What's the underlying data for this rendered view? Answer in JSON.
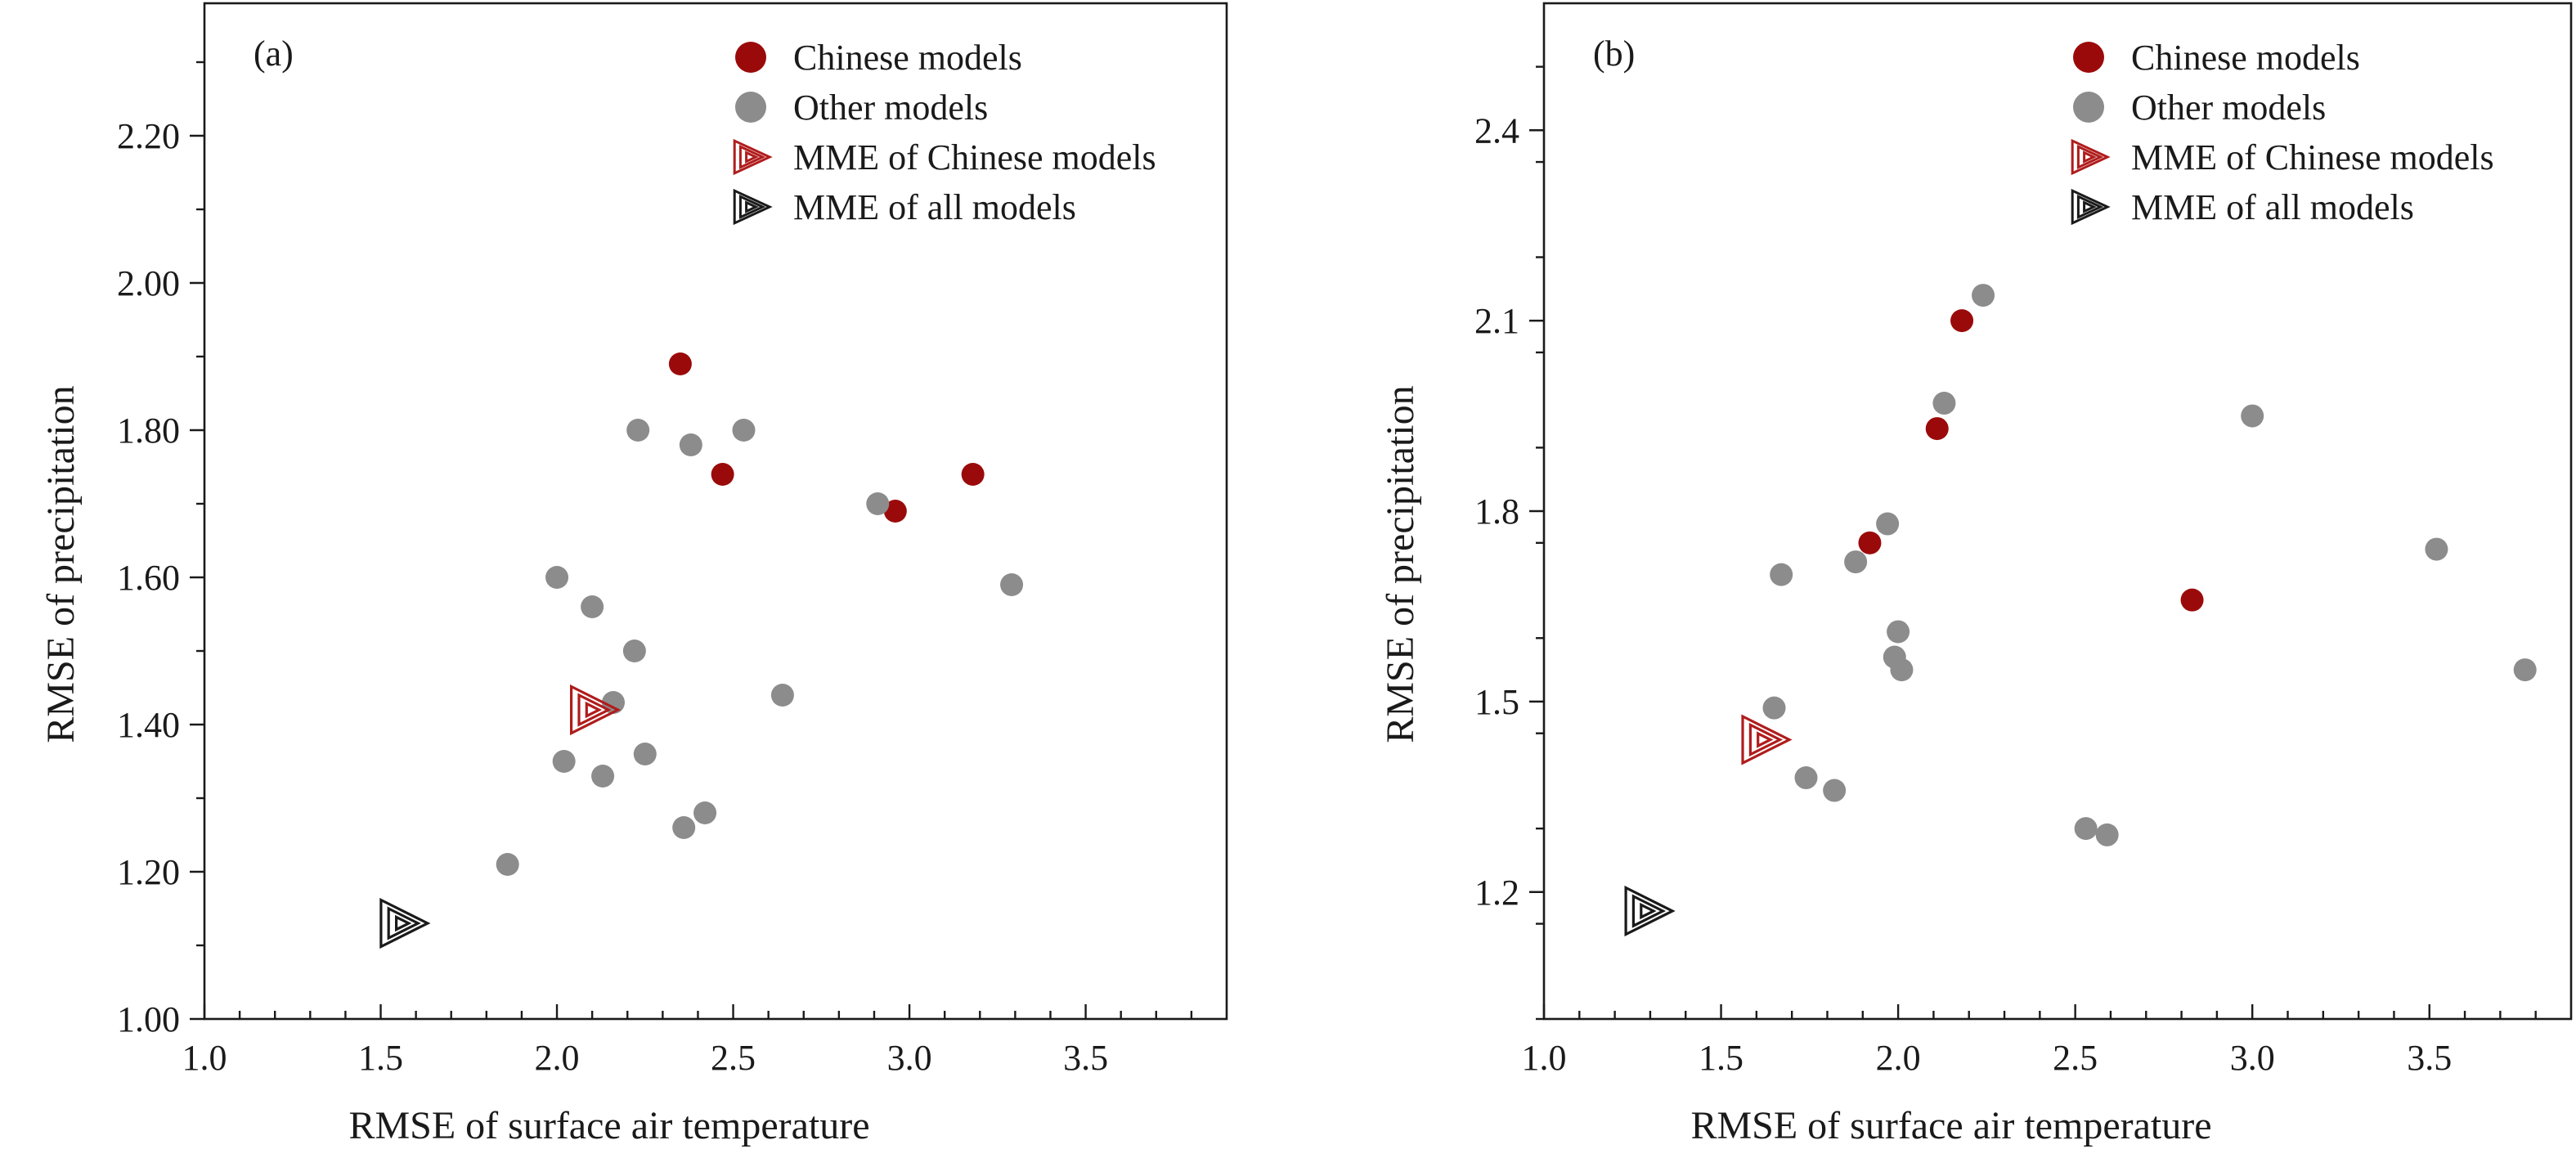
{
  "figure": {
    "legend": {
      "chinese": "Chinese models",
      "other": "Other models",
      "mme_chinese": "MME of Chinese models",
      "mme_all": "MME of all models"
    },
    "colors": {
      "chinese": "#9b0a0a",
      "other": "#8c8c8c",
      "mme_chinese": "#b01c1c",
      "mme_all": "#1a1a1a"
    }
  },
  "chart_data": [
    {
      "type": "scatter",
      "panel_label": "(a)",
      "xlabel": "RMSE of surface air temperature",
      "ylabel": "RMSE of precipitation",
      "xlim": [
        1.0,
        3.9
      ],
      "ylim": [
        1.0,
        2.38
      ],
      "xticks": [
        1.0,
        1.5,
        2.0,
        2.5,
        3.0,
        3.5
      ],
      "xtick_labels": [
        "1.0",
        "1.5",
        "2.0",
        "2.5",
        "3.0",
        "3.5"
      ],
      "yticks": [
        1.0,
        1.2,
        1.4,
        1.6,
        1.8,
        2.0,
        2.2
      ],
      "ytick_labels": [
        "1.00",
        "1.20",
        "1.40",
        "1.60",
        "1.80",
        "2.00",
        "2.20"
      ],
      "series": [
        {
          "name": "Chinese models",
          "marker": "circle",
          "points": [
            [
              2.35,
              1.89
            ],
            [
              2.47,
              1.74
            ],
            [
              2.96,
              1.69
            ],
            [
              3.18,
              1.74
            ]
          ]
        },
        {
          "name": "Other models",
          "marker": "circle",
          "points": [
            [
              2.23,
              1.8
            ],
            [
              2.38,
              1.78
            ],
            [
              2.53,
              1.8
            ],
            [
              2.91,
              1.7
            ],
            [
              3.29,
              1.59
            ],
            [
              2.0,
              1.6
            ],
            [
              2.1,
              1.56
            ],
            [
              2.22,
              1.5
            ],
            [
              2.16,
              1.43
            ],
            [
              2.64,
              1.44
            ],
            [
              2.02,
              1.35
            ],
            [
              2.25,
              1.36
            ],
            [
              2.13,
              1.33
            ],
            [
              2.42,
              1.28
            ],
            [
              2.36,
              1.26
            ],
            [
              1.86,
              1.21
            ]
          ]
        },
        {
          "name": "MME of Chinese models",
          "marker": "triangle",
          "points": [
            [
              2.1,
              1.42
            ]
          ]
        },
        {
          "name": "MME of all models",
          "marker": "triangle",
          "points": [
            [
              1.56,
              1.13
            ]
          ]
        }
      ]
    },
    {
      "type": "scatter",
      "panel_label": "(b)",
      "xlabel": "RMSE of surface air temperature",
      "ylabel": "RMSE of precipitation",
      "xlim": [
        1.0,
        3.9
      ],
      "ylim": [
        1.0,
        2.6
      ],
      "xticks": [
        1.0,
        1.5,
        2.0,
        2.5,
        3.0,
        3.5
      ],
      "xtick_labels": [
        "1.0",
        "1.5",
        "2.0",
        "2.5",
        "3.0",
        "3.5"
      ],
      "yticks": [
        1.2,
        1.5,
        1.8,
        2.1,
        2.4
      ],
      "ytick_labels": [
        "1.2",
        "1.5",
        "1.8",
        "2.1",
        "2.4"
      ],
      "series": [
        {
          "name": "Chinese models",
          "marker": "circle",
          "points": [
            [
              2.18,
              2.1
            ],
            [
              2.11,
              1.93
            ],
            [
              1.92,
              1.75
            ],
            [
              2.83,
              1.66
            ]
          ]
        },
        {
          "name": "Other models",
          "marker": "circle",
          "points": [
            [
              2.24,
              2.14
            ],
            [
              2.13,
              1.97
            ],
            [
              3.0,
              1.95
            ],
            [
              1.97,
              1.78
            ],
            [
              1.88,
              1.72
            ],
            [
              1.67,
              1.7
            ],
            [
              3.52,
              1.74
            ],
            [
              2.0,
              1.61
            ],
            [
              1.99,
              1.57
            ],
            [
              2.01,
              1.55
            ],
            [
              3.77,
              1.55
            ],
            [
              1.65,
              1.49
            ],
            [
              1.74,
              1.38
            ],
            [
              1.82,
              1.36
            ],
            [
              2.53,
              1.3
            ],
            [
              2.59,
              1.29
            ]
          ]
        },
        {
          "name": "MME of Chinese models",
          "marker": "triangle",
          "points": [
            [
              1.62,
              1.44
            ]
          ]
        },
        {
          "name": "MME of all models",
          "marker": "triangle",
          "points": [
            [
              1.29,
              1.17
            ]
          ]
        }
      ]
    }
  ]
}
